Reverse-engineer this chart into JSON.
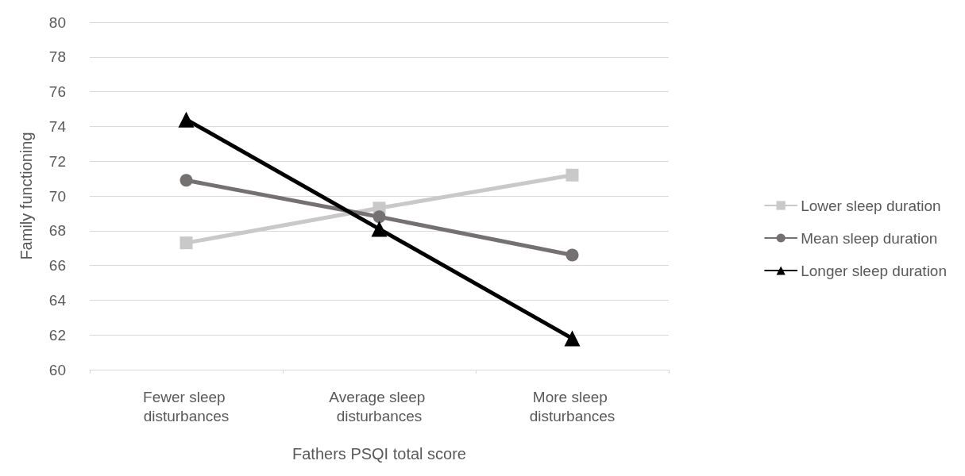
{
  "chart_data": {
    "type": "line",
    "xlabel": "Fathers PSQI total score",
    "ylabel": "Family functioning",
    "categories": [
      "Fewer sleep disturbances",
      "Average sleep disturbances",
      "More sleep disturbances"
    ],
    "series": [
      {
        "name": "Lower sleep duration",
        "color": "#c9c9c9",
        "marker": "square",
        "values": [
          67.3,
          69.3,
          71.2
        ]
      },
      {
        "name": "Mean sleep duration",
        "color": "#767171",
        "marker": "circle",
        "values": [
          70.9,
          68.8,
          66.6
        ]
      },
      {
        "name": "Longer sleep duration",
        "color": "#000000",
        "marker": "triangle",
        "values": [
          74.4,
          68.1,
          61.8
        ]
      }
    ],
    "ylim": [
      60,
      80
    ],
    "yticks": [
      60,
      62,
      64,
      66,
      68,
      70,
      72,
      74,
      76,
      78,
      80
    ],
    "grid": "y",
    "legend": "right",
    "line_style": "solid"
  }
}
